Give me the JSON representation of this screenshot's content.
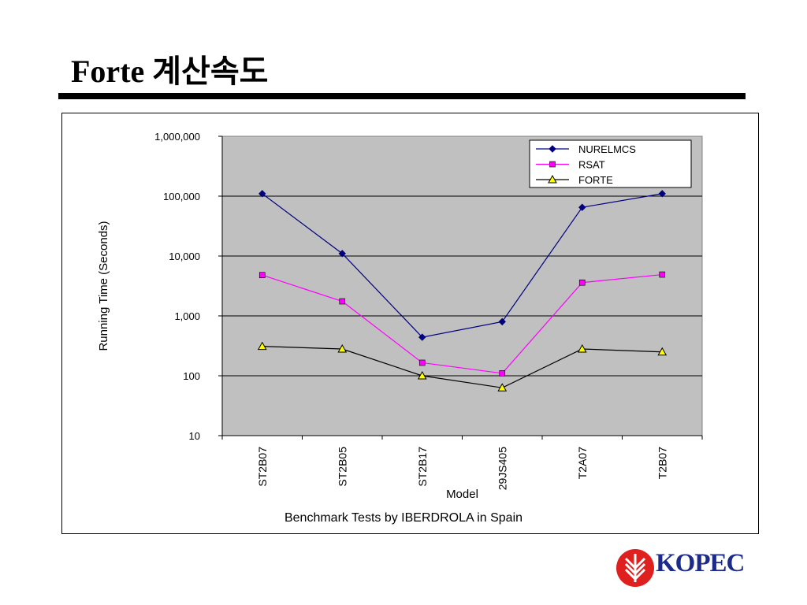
{
  "slide": {
    "title": "Forte 계산속도",
    "caption": "Benchmark Tests by IBERDROLA in Spain",
    "logo_text": "KOPEC",
    "logo_icon": "kopec-emblem-icon",
    "logo_color": "#e01f1f",
    "logo_text_color": "#1c2a8c"
  },
  "chart_data": {
    "type": "line",
    "title": "",
    "xlabel": "Model",
    "ylabel": "Running Time (Seconds)",
    "yscale": "log",
    "ylim": [
      10,
      1000000
    ],
    "yticks": [
      {
        "value": 10,
        "label": "10"
      },
      {
        "value": 100,
        "label": "100"
      },
      {
        "value": 1000,
        "label": "1,000"
      },
      {
        "value": 10000,
        "label": "10,000"
      },
      {
        "value": 100000,
        "label": "100,000"
      },
      {
        "value": 1000000,
        "label": "1,000,000"
      }
    ],
    "categories": [
      "ST2B07",
      "ST2B05",
      "ST2B17",
      "29JS405",
      "T2A07",
      "T2B07"
    ],
    "grid": true,
    "plot_background": "#c0c0c0",
    "legend_position": "top-right",
    "series": [
      {
        "name": "NURELMCS",
        "color": "#000080",
        "marker": "diamond",
        "values": [
          110000,
          11000,
          440,
          800,
          65000,
          110000
        ]
      },
      {
        "name": "RSAT",
        "color": "#ff00ff",
        "marker": "square",
        "values": [
          4800,
          1750,
          165,
          110,
          3600,
          4900
        ]
      },
      {
        "name": "FORTE",
        "color": "#000000",
        "marker": "triangle",
        "marker_fill": "#ffff00",
        "values": [
          310,
          280,
          100,
          63,
          280,
          250
        ]
      }
    ]
  }
}
